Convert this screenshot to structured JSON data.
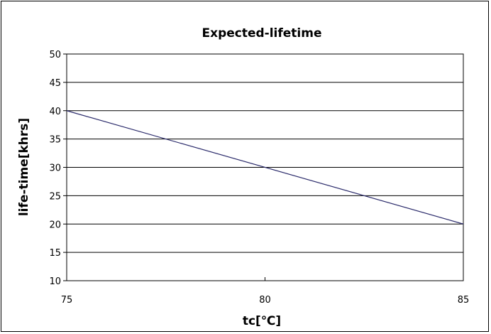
{
  "chart_data": {
    "type": "line",
    "title": "Expected-lifetime",
    "xlabel": "tc[℃]",
    "ylabel": "life-time[khrs]",
    "xlim": [
      75,
      85
    ],
    "ylim": [
      10,
      50
    ],
    "x_ticks": [
      75,
      80,
      85
    ],
    "y_ticks": [
      10,
      15,
      20,
      25,
      30,
      35,
      40,
      45,
      50
    ],
    "grid": "horizontal",
    "legend": "none",
    "series": [
      {
        "x": [
          75,
          85
        ],
        "y": [
          40,
          20
        ],
        "color": "#2b2b6b"
      }
    ]
  }
}
